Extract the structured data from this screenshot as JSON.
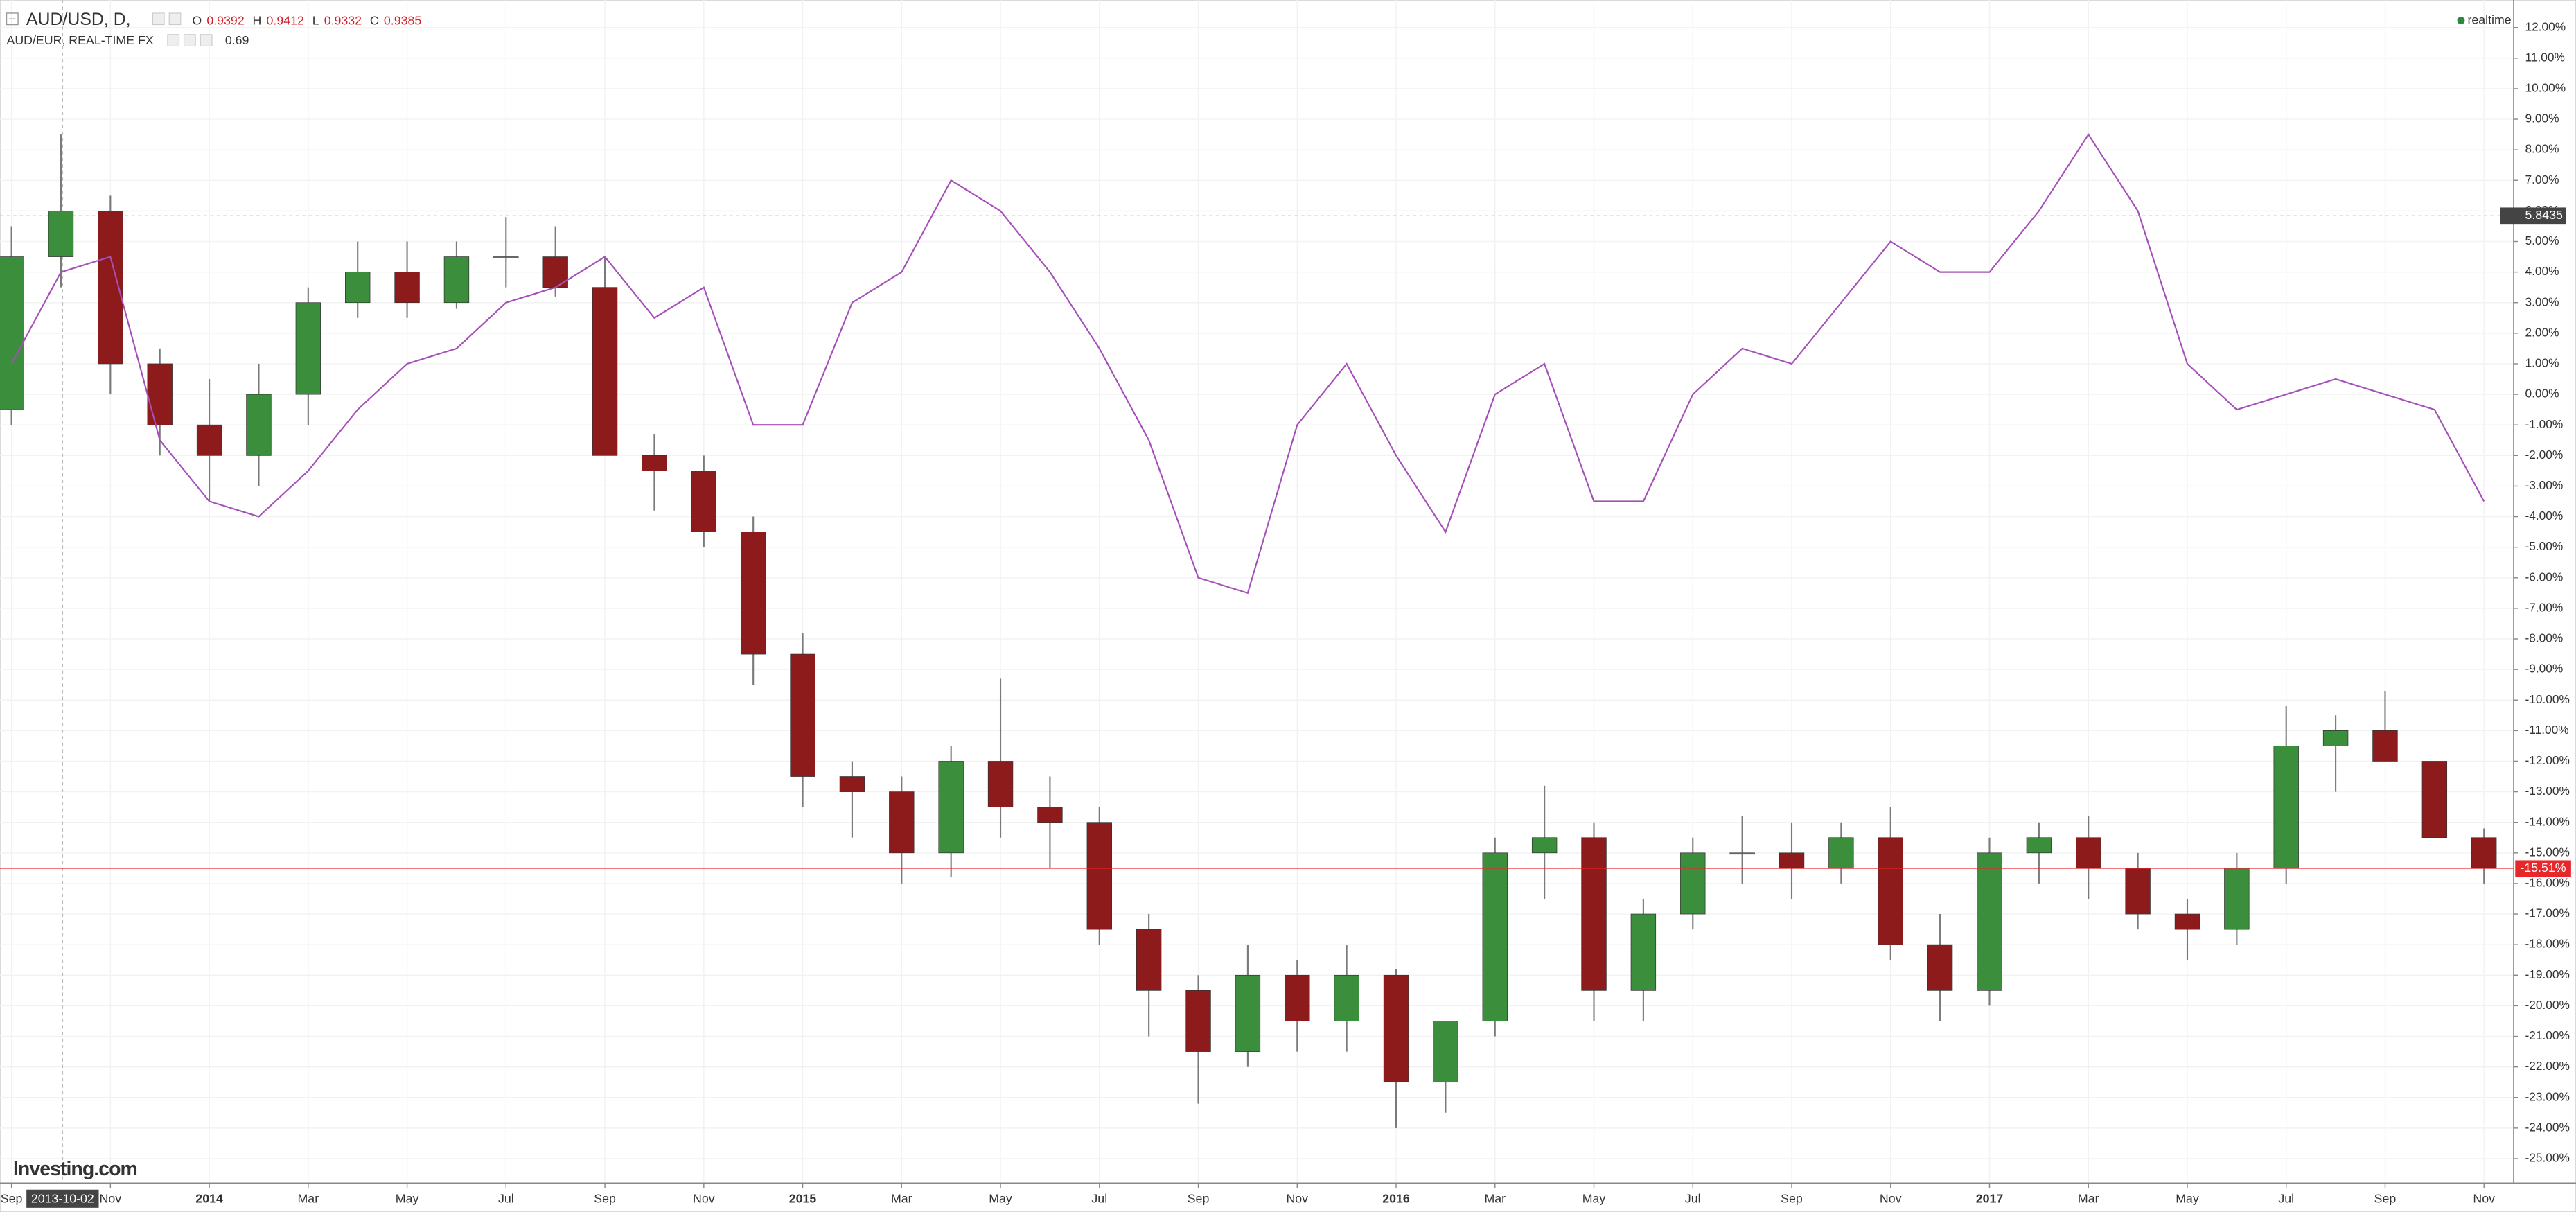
{
  "chart_data": {
    "type": "candlestick",
    "x": [
      "2013-09",
      "2013-10",
      "2013-11",
      "2013-12",
      "2014-01",
      "2014-02",
      "2014-03",
      "2014-04",
      "2014-05",
      "2014-06",
      "2014-07",
      "2014-08",
      "2014-09",
      "2014-10",
      "2014-11",
      "2014-12",
      "2015-01",
      "2015-02",
      "2015-03",
      "2015-04",
      "2015-05",
      "2015-06",
      "2015-07",
      "2015-08",
      "2015-09",
      "2015-10",
      "2015-11",
      "2015-12",
      "2016-01",
      "2016-02",
      "2016-03",
      "2016-04",
      "2016-05",
      "2016-06",
      "2016-07",
      "2016-08",
      "2016-09",
      "2016-10",
      "2016-11",
      "2016-12",
      "2017-01",
      "2017-02",
      "2017-03",
      "2017-04",
      "2017-05",
      "2017-06",
      "2017-07",
      "2017-08",
      "2017-09",
      "2017-10",
      "2017-11"
    ],
    "series": [
      {
        "name": "AUD/USD, D,",
        "type": "candlestick",
        "up_color": "#3b8e3b",
        "down_color": "#8e1b1b",
        "wick_color": "#7a7a7a",
        "quote": [
          {
            "label": "O",
            "value": 0.9392
          },
          {
            "label": "H",
            "value": 0.9412
          },
          {
            "label": "L",
            "value": 0.9332
          },
          {
            "label": "C",
            "value": 0.9385
          }
        ],
        "ohlc": [
          [
            -0.5,
            5.5,
            -1,
            4.5
          ],
          [
            4.5,
            8.5,
            3.5,
            6
          ],
          [
            6,
            6.5,
            0,
            1
          ],
          [
            1,
            1.5,
            -2,
            -1
          ],
          [
            -1,
            0.5,
            -3.5,
            -2
          ],
          [
            -2,
            1,
            -3,
            0
          ],
          [
            0,
            3.5,
            -1,
            3
          ],
          [
            3,
            5,
            2.5,
            4
          ],
          [
            4,
            5,
            2.5,
            3
          ],
          [
            3,
            5,
            2.8,
            4.5
          ],
          [
            4.5,
            5.8,
            3.5,
            4.5
          ],
          [
            4.5,
            5.5,
            3.2,
            3.5
          ],
          [
            3.5,
            4.5,
            -2,
            -2
          ],
          [
            -2,
            -1.3,
            -3.8,
            -2.5
          ],
          [
            -2.5,
            -2,
            -5,
            -4.5
          ],
          [
            -4.5,
            -4,
            -9.5,
            -8.5
          ],
          [
            -8.5,
            -7.8,
            -13.5,
            -12.5
          ],
          [
            -12.5,
            -12,
            -14.5,
            -13
          ],
          [
            -13,
            -12.5,
            -16,
            -15
          ],
          [
            -15,
            -11.5,
            -15.8,
            -12
          ],
          [
            -12,
            -9.3,
            -14.5,
            -13.5
          ],
          [
            -13.5,
            -12.5,
            -15.5,
            -14
          ],
          [
            -14,
            -13.5,
            -18,
            -17.5
          ],
          [
            -17.5,
            -17,
            -21,
            -19.5
          ],
          [
            -19.5,
            -19,
            -23.2,
            -21.5
          ],
          [
            -21.5,
            -18,
            -22,
            -19
          ],
          [
            -19,
            -18.5,
            -21.5,
            -20.5
          ],
          [
            -20.5,
            -18,
            -21.5,
            -19
          ],
          [
            -19,
            -18.8,
            -24,
            -22.5
          ],
          [
            -22.5,
            -20.5,
            -23.5,
            -20.5
          ],
          [
            -20.5,
            -14.5,
            -21,
            -15
          ],
          [
            -15,
            -12.8,
            -16.5,
            -14.5
          ],
          [
            -14.5,
            -14,
            -20.5,
            -19.5
          ],
          [
            -19.5,
            -16.5,
            -20.5,
            -17
          ],
          [
            -17,
            -14.5,
            -17.5,
            -15
          ],
          [
            -15,
            -13.8,
            -16,
            -15
          ],
          [
            -15,
            -14,
            -16.5,
            -15.5
          ],
          [
            -15.5,
            -14,
            -16,
            -14.5
          ],
          [
            -14.5,
            -13.5,
            -18.5,
            -18
          ],
          [
            -18,
            -17,
            -20.5,
            -19.5
          ],
          [
            -19.5,
            -14.5,
            -20,
            -15
          ],
          [
            -15,
            -14,
            -16,
            -14.5
          ],
          [
            -14.5,
            -13.8,
            -16.5,
            -15.5
          ],
          [
            -15.5,
            -15,
            -17.5,
            -17
          ],
          [
            -17,
            -16.5,
            -18.5,
            -17.5
          ],
          [
            -17.5,
            -15,
            -18,
            -15.5
          ],
          [
            -15.5,
            -10.2,
            -16,
            -11.5
          ],
          [
            -11.5,
            -10.5,
            -13,
            -11
          ],
          [
            -11,
            -9.7,
            -12,
            -12
          ],
          [
            -12,
            -12,
            -14.5,
            -14.5
          ],
          [
            -14.5,
            -14.2,
            -16,
            -15.5
          ]
        ]
      },
      {
        "name": "AUD/EUR, REAL-TIME FX",
        "type": "line",
        "color": "#a54fb8",
        "value": 0.69,
        "values": [
          1,
          4,
          4.5,
          -1.5,
          -3.5,
          -4,
          -2.5,
          -0.5,
          1,
          1.5,
          3,
          3.5,
          4.5,
          2.5,
          3.5,
          -1,
          -1,
          3,
          4,
          7,
          6,
          4,
          1.5,
          -1.5,
          -6,
          -6.5,
          -1,
          1,
          -2,
          -4.5,
          0,
          1,
          -3.5,
          -3.5,
          0,
          1.5,
          1,
          3,
          5,
          4,
          4,
          6,
          8.5,
          6,
          1,
          -0.5,
          0,
          0.5,
          0,
          -0.5,
          -3.5
        ]
      }
    ],
    "xlim": [
      "2013-09",
      "2017-11"
    ],
    "xticks": [
      {
        "value": "2013-09",
        "label": "Sep"
      },
      {
        "value": "2013-11",
        "label": "Nov"
      },
      {
        "value": "2014-01",
        "label": "2014"
      },
      {
        "value": "2014-03",
        "label": "Mar"
      },
      {
        "value": "2014-05",
        "label": "May"
      },
      {
        "value": "2014-07",
        "label": "Jul"
      },
      {
        "value": "2014-09",
        "label": "Sep"
      },
      {
        "value": "2014-11",
        "label": "Nov"
      },
      {
        "value": "2015-01",
        "label": "2015"
      },
      {
        "value": "2015-03",
        "label": "Mar"
      },
      {
        "value": "2015-05",
        "label": "May"
      },
      {
        "value": "2015-07",
        "label": "Jul"
      },
      {
        "value": "2015-09",
        "label": "Sep"
      },
      {
        "value": "2015-11",
        "label": "Nov"
      },
      {
        "value": "2016-01",
        "label": "2016"
      },
      {
        "value": "2016-03",
        "label": "Mar"
      },
      {
        "value": "2016-05",
        "label": "May"
      },
      {
        "value": "2016-07",
        "label": "Jul"
      },
      {
        "value": "2016-09",
        "label": "Sep"
      },
      {
        "value": "2016-11",
        "label": "Nov"
      },
      {
        "value": "2017-01",
        "label": "2017"
      },
      {
        "value": "2017-03",
        "label": "Mar"
      },
      {
        "value": "2017-05",
        "label": "May"
      },
      {
        "value": "2017-07",
        "label": "Jul"
      },
      {
        "value": "2017-09",
        "label": "Sep"
      },
      {
        "value": "2017-11",
        "label": "Nov"
      }
    ],
    "ylim": [
      -25.8,
      12.9
    ],
    "yticks": [
      {
        "value": 12,
        "label": "12.00%"
      },
      {
        "value": 11,
        "label": "11.00%"
      },
      {
        "value": 10,
        "label": "10.00%"
      },
      {
        "value": 9,
        "label": "9.00%"
      },
      {
        "value": 8,
        "label": "8.00%"
      },
      {
        "value": 7,
        "label": "7.00%"
      },
      {
        "value": 6,
        "label": "6.00%"
      },
      {
        "value": 5,
        "label": "5.00%"
      },
      {
        "value": 4,
        "label": "4.00%"
      },
      {
        "value": 3,
        "label": "3.00%"
      },
      {
        "value": 2,
        "label": "2.00%"
      },
      {
        "value": 1,
        "label": "1.00%"
      },
      {
        "value": 0,
        "label": "0.00%"
      },
      {
        "value": -1,
        "label": "-1.00%"
      },
      {
        "value": -2,
        "label": "-2.00%"
      },
      {
        "value": -3,
        "label": "-3.00%"
      },
      {
        "value": -4,
        "label": "-4.00%"
      },
      {
        "value": -5,
        "label": "-5.00%"
      },
      {
        "value": -6,
        "label": "-6.00%"
      },
      {
        "value": -7,
        "label": "-7.00%"
      },
      {
        "value": -8,
        "label": "-8.00%"
      },
      {
        "value": -9,
        "label": "-9.00%"
      },
      {
        "value": -10,
        "label": "-10.00%"
      },
      {
        "value": -11,
        "label": "-11.00%"
      },
      {
        "value": -12,
        "label": "-12.00%"
      },
      {
        "value": -13,
        "label": "-13.00%"
      },
      {
        "value": -14,
        "label": "-14.00%"
      },
      {
        "value": -15,
        "label": "-15.00%"
      },
      {
        "value": -16,
        "label": "-16.00%"
      },
      {
        "value": -17,
        "label": "-17.00%"
      },
      {
        "value": -18,
        "label": "-18.00%"
      },
      {
        "value": -19,
        "label": "-19.00%"
      },
      {
        "value": -20,
        "label": "-20.00%"
      },
      {
        "value": -21,
        "label": "-21.00%"
      },
      {
        "value": -22,
        "label": "-22.00%"
      },
      {
        "value": -23,
        "label": "-23.00%"
      },
      {
        "value": -24,
        "label": "-24.00%"
      },
      {
        "value": -25,
        "label": "-25.00%"
      }
    ],
    "grid": true,
    "crosshair": {
      "x": "2013-10-02",
      "y": 5.8435
    },
    "last_value": {
      "value": -15.51,
      "label": "-15.51%",
      "color": "#e8272a"
    },
    "status": "realtime",
    "logo": "Investing.com"
  }
}
